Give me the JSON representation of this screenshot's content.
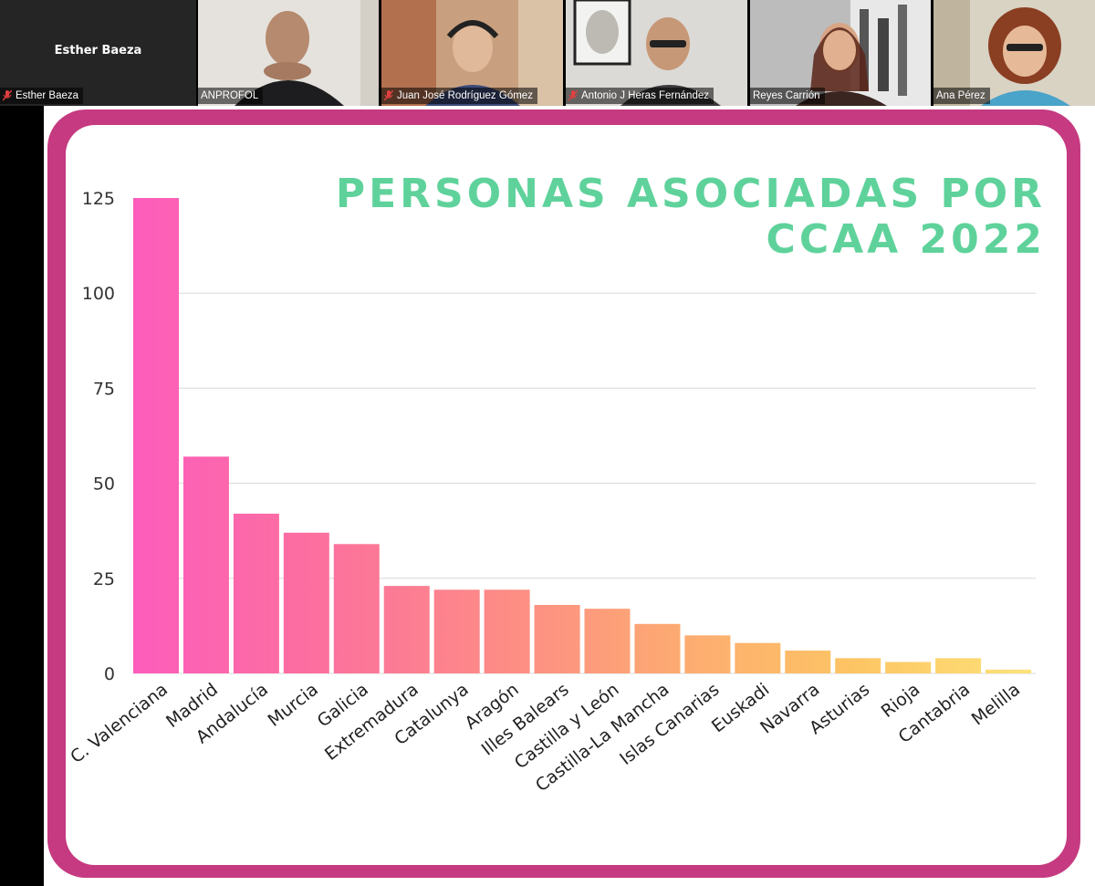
{
  "participants": [
    {
      "name": "Esther Baeza",
      "caption": "Esther Baeza",
      "muted": true,
      "video": false
    },
    {
      "name": "ANPROFOL",
      "caption": "ANPROFOL",
      "muted": false,
      "video": true,
      "avatar_color": "#6e6a66",
      "bg_color": "#e7e4e0"
    },
    {
      "name": "Juan José Rodríguez Gómez",
      "caption": "Juan José Rodríguez Gómez",
      "muted": true,
      "video": true,
      "avatar_color": "#3d4a7a",
      "bg_color": "#c79c7c"
    },
    {
      "name": "Antonio J Heras Fernández",
      "caption": "Antonio J Heras Fernández",
      "muted": true,
      "video": true,
      "avatar_color": "#3a3a3a",
      "bg_color": "#d8d6d2"
    },
    {
      "name": "Reyes Carrión",
      "caption": "Reyes Carrión",
      "muted": false,
      "video": true,
      "avatar_color": "#4a2a20",
      "bg_color": "#b9b9b9"
    },
    {
      "name": "Ana Pérez",
      "caption": "Ana Pérez",
      "muted": false,
      "video": true,
      "active": true,
      "avatar_color": "#4aa3c8",
      "bg_color": "#d9d3c4"
    }
  ],
  "colors": {
    "accent_frame": "#c53a80",
    "title": "#5fd29b",
    "bar_gradient": [
      "#fc5dbc",
      "#fc6f9f",
      "#fd8a87",
      "#fdaa72",
      "#fdc564",
      "#fde37a"
    ]
  },
  "chart_data": {
    "type": "bar",
    "title": "PERSONAS ASOCIADAS POR CCAA 2022",
    "categories": [
      "C. Valenciana",
      "Madrid",
      "Andalucía",
      "Murcia",
      "Galicia",
      "Extremadura",
      "Catalunya",
      "Aragón",
      "Illes Balears",
      "Castilla y León",
      "Castilla-La Mancha",
      "Islas Canarias",
      "Euskadi",
      "Navarra",
      "Asturias",
      "Rioja",
      "Cantabria",
      "Melilla"
    ],
    "values": [
      125,
      57,
      42,
      37,
      34,
      23,
      22,
      22,
      18,
      17,
      13,
      10,
      8,
      6,
      4,
      3,
      4,
      1
    ],
    "yticks": [
      0,
      25,
      50,
      75,
      100,
      125
    ],
    "ylim": [
      0,
      125
    ],
    "grid": true,
    "legend": "none"
  }
}
